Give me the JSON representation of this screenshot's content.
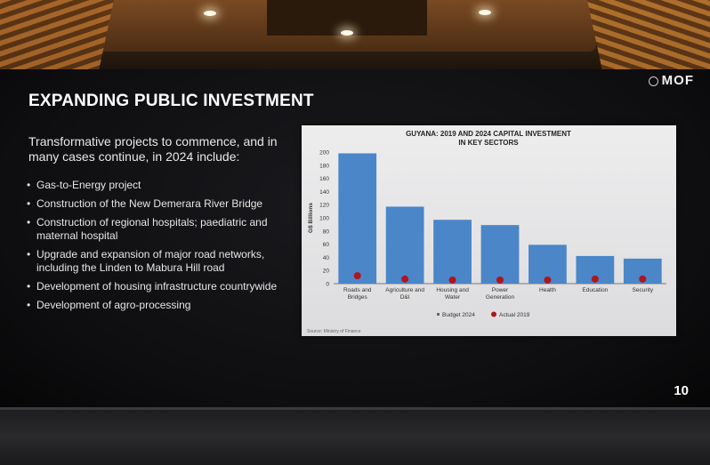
{
  "logo": {
    "text": "MOF"
  },
  "slide": {
    "title": "EXPANDING PUBLIC INVESTMENT",
    "intro": "Transformative projects to commence, and in many cases continue, in 2024 include:",
    "bullets": [
      "Gas-to-Energy project",
      "Construction of the New Demerara River Bridge",
      "Construction of regional hospitals; paediatric and maternal hospital",
      "Upgrade and expansion of major road networks, including the Linden to Mabura Hill road",
      "Development of housing infrastructure countrywide",
      "Development of agro-processing"
    ],
    "page_number": "10"
  },
  "chart_data": {
    "type": "bar",
    "title_line1": "GUYANA: 2019 AND 2024 CAPITAL INVESTMENT",
    "title_line2": "IN KEY SECTORS",
    "ylabel": "G$ Billions",
    "ylim": [
      0,
      200
    ],
    "yticks": [
      "0",
      "20",
      "40",
      "60",
      "80",
      "100",
      "120",
      "140",
      "160",
      "180",
      "200"
    ],
    "categories": [
      [
        "Roads and",
        "Bridges"
      ],
      [
        "Agriculture and",
        "D&I"
      ],
      [
        "Housing and",
        "Water"
      ],
      [
        "Power",
        "Generation"
      ],
      [
        "Health"
      ],
      [
        "Education"
      ],
      [
        "Security"
      ]
    ],
    "series": [
      {
        "name": "Budget 2024",
        "values": [
          198,
          117,
          97,
          89,
          59,
          42,
          38
        ]
      },
      {
        "name": "Actual 2019",
        "values": [
          12,
          7,
          4,
          5,
          4,
          7,
          7
        ]
      }
    ],
    "legend": {
      "placement": "bottom",
      "labels": [
        "Budget 2024",
        "Actual 2019"
      ]
    },
    "source": "Source: Ministry of Finance",
    "colors": {
      "bar": "#4a86c8",
      "dot": "#b0141c",
      "axis": "#555555"
    }
  }
}
